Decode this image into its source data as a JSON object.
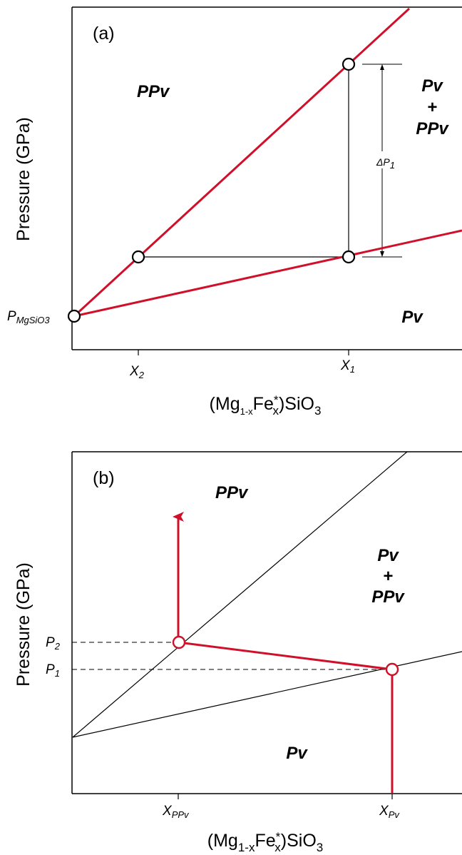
{
  "panel_a": {
    "tag": "(a)",
    "ylabel": "Pressure (GPa)",
    "xlabel": {
      "main": "(Mg",
      "sub1": "1-x",
      "fe": "Fe",
      "sup": "*",
      "sub2": "x",
      "end": ")SiO",
      "sub3": "3"
    },
    "regions": {
      "ppv": "PPv",
      "pv_top": "Pv",
      "plus": "+",
      "ppv_bottom": "PPv",
      "pv": "Pv"
    },
    "x_ticks": [
      {
        "base": "X",
        "sub": "2"
      },
      {
        "base": "X",
        "sub": "1"
      }
    ],
    "y_tick": {
      "base": "P",
      "sub": "MgSiO3"
    },
    "delta_label": {
      "base": "ΔP",
      "sub": "1"
    }
  },
  "panel_b": {
    "tag": "(b)",
    "ylabel": "Pressure (GPa)",
    "xlabel": {
      "main": "(Mg",
      "sub1": "1-x",
      "fe": "Fe",
      "sup": "*",
      "sub2": "x",
      "end": ")SiO",
      "sub3": "3"
    },
    "regions": {
      "ppv": "PPv",
      "pv_top": "Pv",
      "plus": "+",
      "ppv_bottom": "PPv",
      "pv": "Pv"
    },
    "x_ticks": [
      {
        "base": "X",
        "sub": "PPv"
      },
      {
        "base": "X",
        "sub": "Pv"
      }
    ],
    "y_ticks": [
      {
        "base": "P",
        "sub": "2"
      },
      {
        "base": "P",
        "sub": "1"
      }
    ]
  },
  "colors": {
    "boundary": "#d0102a",
    "line": "#000000",
    "background": "#ffffff"
  }
}
